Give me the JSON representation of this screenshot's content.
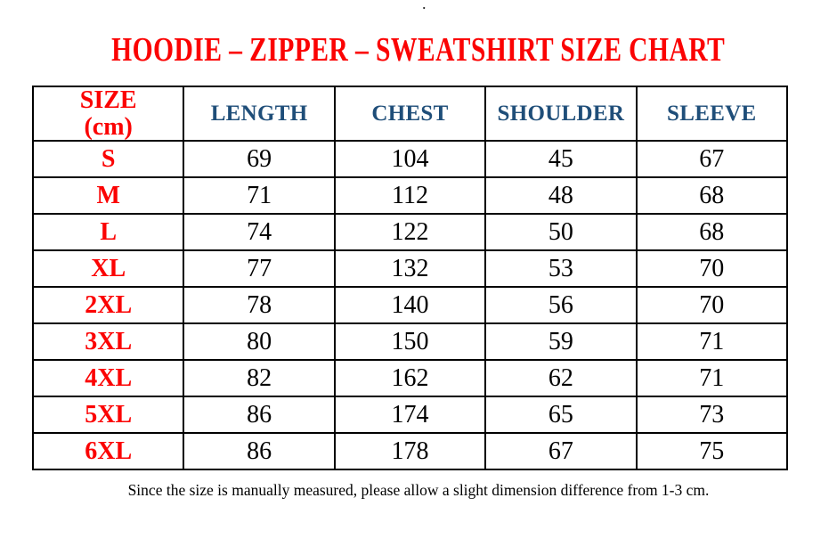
{
  "artifact": {
    "dot": "."
  },
  "title": "HOODIE – ZIPPER – SWEATSHIRT SIZE CHART",
  "table": {
    "header": {
      "size": "SIZE",
      "size_unit": "(cm)",
      "columns": [
        "LENGTH",
        "CHEST",
        "SHOULDER",
        "SLEEVE"
      ]
    },
    "rows": [
      {
        "size": "S",
        "values": [
          "69",
          "104",
          "45",
          "67"
        ]
      },
      {
        "size": "M",
        "values": [
          "71",
          "112",
          "48",
          "68"
        ]
      },
      {
        "size": "L",
        "values": [
          "74",
          "122",
          "50",
          "68"
        ]
      },
      {
        "size": "XL",
        "values": [
          "77",
          "132",
          "53",
          "70"
        ]
      },
      {
        "size": "2XL",
        "values": [
          "78",
          "140",
          "56",
          "70"
        ]
      },
      {
        "size": "3XL",
        "values": [
          "80",
          "150",
          "59",
          "71"
        ]
      },
      {
        "size": "4XL",
        "values": [
          "82",
          "162",
          "62",
          "71"
        ]
      },
      {
        "size": "5XL",
        "values": [
          "86",
          "174",
          "65",
          "73"
        ]
      },
      {
        "size": "6XL",
        "values": [
          "86",
          "178",
          "67",
          "75"
        ]
      }
    ]
  },
  "footer_note": "Since the size is manually measured, please allow a slight dimension difference from 1-3 cm.",
  "colors": {
    "title_red": "#FB0303",
    "header_blue": "#1F4E79",
    "text_black": "#000000",
    "border_black": "#000000",
    "background": "#FFFFFF"
  }
}
